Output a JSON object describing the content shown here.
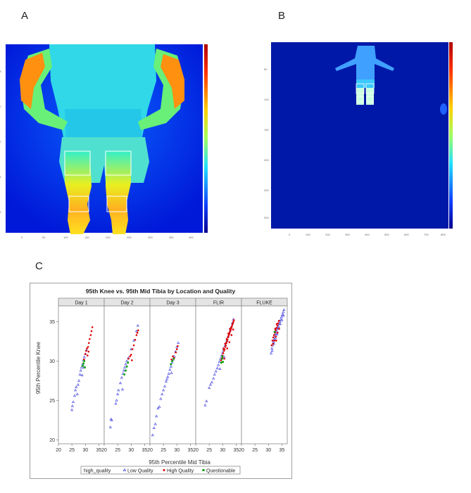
{
  "panels": {
    "a_label": "A",
    "b_label": "B",
    "c_label": "C"
  },
  "colors": {
    "thermal_low": "#0000c8",
    "thermal_high": "#cc0000",
    "low_quality": "#3a3ae0",
    "high_quality": "#e00000",
    "questionable": "#00a000"
  },
  "chart_data": {
    "type": "scatter",
    "title": "95th Knee vs. 95th Mid Tibia by Location and Quality",
    "xlabel": "95th Percentile Mid Tibia",
    "ylabel": "95th Percentile Knee",
    "xlim": [
      20,
      37
    ],
    "ylim": [
      19.5,
      37
    ],
    "x_ticks": [
      20,
      25,
      30,
      35
    ],
    "y_ticks": [
      20,
      25,
      30,
      35
    ],
    "grid": false,
    "legend_title": "high_quality",
    "legend_placement": "bottom",
    "facets": [
      {
        "name": "Day 1",
        "series": [
          {
            "name": "Low Quality",
            "points": [
              [
                25.0,
                23.8
              ],
              [
                25.2,
                24.3
              ],
              [
                25.5,
                24.8
              ],
              [
                26.0,
                25.6
              ],
              [
                26.3,
                26.3
              ],
              [
                26.6,
                26.7
              ],
              [
                27.0,
                25.8
              ],
              [
                27.3,
                27.0
              ],
              [
                27.6,
                27.5
              ],
              [
                28.0,
                28.3
              ],
              [
                28.3,
                28.8
              ],
              [
                28.6,
                29.2
              ],
              [
                29.0,
                29.6
              ],
              [
                29.3,
                30.1
              ],
              [
                29.6,
                30.5
              ],
              [
                30.0,
                30.9
              ],
              [
                30.4,
                31.4
              ],
              [
                28.8,
                28.2
              ],
              [
                29.5,
                29.2
              ]
            ]
          },
          {
            "name": "High Quality",
            "points": [
              [
                29.5,
                30.2
              ],
              [
                30.0,
                30.9
              ],
              [
                30.3,
                31.3
              ],
              [
                30.6,
                31.6
              ],
              [
                31.0,
                31.8
              ],
              [
                31.3,
                32.3
              ],
              [
                31.6,
                32.8
              ],
              [
                32.0,
                33.3
              ],
              [
                32.3,
                33.8
              ],
              [
                32.6,
                34.3
              ],
              [
                31.2,
                31.2
              ],
              [
                30.8,
                30.7
              ]
            ]
          },
          {
            "name": "Questionable",
            "points": [
              [
                29.0,
                29.4
              ],
              [
                29.3,
                29.7
              ],
              [
                29.6,
                30.0
              ],
              [
                29.8,
                29.2
              ]
            ]
          }
        ]
      },
      {
        "name": "Day 2",
        "series": [
          {
            "name": "Low Quality",
            "points": [
              [
                22.5,
                22.6
              ],
              [
                22.8,
                22.5
              ],
              [
                22.3,
                21.6
              ],
              [
                24.3,
                24.6
              ],
              [
                24.6,
                25.0
              ],
              [
                25.0,
                25.8
              ],
              [
                25.3,
                26.3
              ],
              [
                26.0,
                27.2
              ],
              [
                26.5,
                27.9
              ],
              [
                27.0,
                28.4
              ],
              [
                27.3,
                28.8
              ],
              [
                27.6,
                29.2
              ],
              [
                28.0,
                29.6
              ],
              [
                28.4,
                30.0
              ],
              [
                29.0,
                30.4
              ],
              [
                30.0,
                31.5
              ],
              [
                31.0,
                32.6
              ],
              [
                32.0,
                33.8
              ],
              [
                32.5,
                34.5
              ],
              [
                26.8,
                26.4
              ]
            ]
          },
          {
            "name": "High Quality",
            "points": [
              [
                29.0,
                30.3
              ],
              [
                29.6,
                30.6
              ],
              [
                30.0,
                30.8
              ],
              [
                30.5,
                31.5
              ],
              [
                31.0,
                32.0
              ],
              [
                31.5,
                32.7
              ],
              [
                32.0,
                33.3
              ],
              [
                32.3,
                33.6
              ],
              [
                32.6,
                33.9
              ],
              [
                30.3,
                30.1
              ]
            ]
          },
          {
            "name": "Questionable",
            "points": [
              [
                27.5,
                28.3
              ],
              [
                28.0,
                28.8
              ],
              [
                28.4,
                29.3
              ],
              [
                28.8,
                29.8
              ]
            ]
          }
        ]
      },
      {
        "name": "Day 3",
        "series": [
          {
            "name": "Low Quality",
            "points": [
              [
                21.0,
                20.6
              ],
              [
                21.5,
                21.5
              ],
              [
                22.0,
                22.0
              ],
              [
                22.4,
                23.0
              ],
              [
                23.0,
                24.0
              ],
              [
                23.5,
                24.2
              ],
              [
                24.0,
                25.2
              ],
              [
                24.5,
                25.8
              ],
              [
                25.0,
                26.3
              ],
              [
                25.5,
                26.8
              ],
              [
                26.0,
                27.4
              ],
              [
                26.3,
                27.7
              ],
              [
                26.6,
                28.0
              ],
              [
                27.0,
                28.4
              ],
              [
                27.4,
                28.9
              ],
              [
                27.8,
                29.3
              ],
              [
                28.2,
                29.8
              ],
              [
                28.6,
                30.2
              ],
              [
                29.0,
                30.6
              ],
              [
                29.5,
                31.2
              ],
              [
                30.0,
                31.8
              ],
              [
                30.5,
                32.3
              ],
              [
                28.0,
                28.5
              ]
            ]
          },
          {
            "name": "High Quality",
            "points": [
              [
                28.0,
                30.2
              ],
              [
                28.5,
                30.6
              ],
              [
                29.0,
                30.4
              ],
              [
                29.6,
                31.1
              ],
              [
                30.0,
                31.5
              ],
              [
                30.3,
                31.9
              ]
            ]
          },
          {
            "name": "Questionable",
            "points": [
              [
                27.8,
                29.6
              ],
              [
                28.3,
                30.0
              ],
              [
                28.8,
                30.3
              ]
            ]
          }
        ]
      },
      {
        "name": "FLIR",
        "series": [
          {
            "name": "Low Quality",
            "points": [
              [
                23.5,
                24.4
              ],
              [
                24.0,
                24.9
              ],
              [
                25.0,
                26.6
              ],
              [
                25.5,
                27.0
              ],
              [
                26.0,
                27.3
              ],
              [
                26.6,
                27.8
              ],
              [
                27.0,
                28.3
              ],
              [
                27.5,
                28.7
              ],
              [
                28.0,
                29.1
              ],
              [
                28.4,
                29.5
              ],
              [
                28.8,
                29.9
              ],
              [
                29.2,
                30.3
              ],
              [
                29.6,
                30.7
              ],
              [
                30.0,
                31.1
              ],
              [
                30.4,
                31.5
              ],
              [
                30.8,
                31.9
              ],
              [
                31.2,
                32.3
              ],
              [
                31.6,
                32.7
              ],
              [
                32.0,
                33.1
              ],
              [
                32.4,
                33.5
              ],
              [
                32.8,
                33.9
              ],
              [
                33.2,
                34.3
              ],
              [
                33.6,
                34.8
              ],
              [
                34.0,
                35.3
              ],
              [
                29.0,
                29.0
              ],
              [
                30.6,
                30.5
              ]
            ]
          },
          {
            "name": "High Quality",
            "points": [
              [
                29.4,
                30.1
              ],
              [
                29.8,
                30.4
              ],
              [
                30.0,
                30.7
              ],
              [
                30.2,
                31.0
              ],
              [
                30.5,
                31.3
              ],
              [
                30.7,
                31.5
              ],
              [
                31.0,
                31.8
              ],
              [
                31.2,
                32.0
              ],
              [
                31.4,
                32.3
              ],
              [
                31.6,
                32.5
              ],
              [
                31.8,
                32.7
              ],
              [
                32.0,
                33.0
              ],
              [
                32.2,
                33.2
              ],
              [
                32.4,
                33.4
              ],
              [
                32.6,
                33.6
              ],
              [
                32.8,
                33.8
              ],
              [
                33.0,
                34.0
              ],
              [
                33.2,
                34.2
              ],
              [
                33.4,
                34.4
              ],
              [
                33.6,
                34.6
              ],
              [
                33.8,
                34.8
              ],
              [
                34.0,
                35.0
              ],
              [
                34.2,
                35.2
              ],
              [
                30.3,
                31.6
              ],
              [
                30.9,
                32.2
              ],
              [
                31.5,
                32.8
              ],
              [
                32.1,
                33.5
              ],
              [
                32.7,
                34.1
              ],
              [
                33.3,
                33.3
              ],
              [
                31.7,
                31.6
              ],
              [
                30.6,
                30.3
              ],
              [
                32.5,
                32.4
              ],
              [
                33.9,
                34.0
              ]
            ]
          },
          {
            "name": "Questionable",
            "points": [
              [
                29.5,
                29.8
              ],
              [
                29.8,
                30.3
              ],
              [
                30.1,
                29.9
              ],
              [
                29.9,
                30.6
              ]
            ]
          }
        ]
      },
      {
        "name": "FLUKE",
        "series": [
          {
            "name": "Low Quality",
            "points": [
              [
                31.0,
                31.0
              ],
              [
                31.3,
                31.6
              ],
              [
                31.6,
                32.0
              ],
              [
                31.9,
                32.4
              ],
              [
                32.2,
                32.8
              ],
              [
                32.5,
                33.2
              ],
              [
                32.8,
                33.5
              ],
              [
                33.1,
                33.8
              ],
              [
                33.4,
                34.1
              ],
              [
                33.7,
                34.4
              ],
              [
                34.0,
                34.7
              ],
              [
                34.3,
                35.0
              ],
              [
                34.6,
                35.3
              ],
              [
                34.9,
                35.6
              ],
              [
                35.2,
                35.9
              ],
              [
                35.5,
                36.2
              ],
              [
                35.8,
                36.5
              ],
              [
                31.4,
                31.3
              ],
              [
                32.0,
                32.2
              ],
              [
                32.6,
                32.9
              ],
              [
                33.2,
                33.4
              ],
              [
                33.8,
                34.2
              ],
              [
                34.4,
                34.7
              ],
              [
                35.0,
                35.2
              ],
              [
                35.6,
                35.8
              ]
            ]
          },
          {
            "name": "High Quality",
            "points": [
              [
                31.5,
                32.6
              ],
              [
                31.8,
                33.0
              ],
              [
                32.1,
                33.3
              ],
              [
                32.4,
                33.6
              ],
              [
                32.7,
                33.9
              ],
              [
                33.0,
                34.2
              ],
              [
                33.3,
                34.5
              ],
              [
                33.6,
                34.8
              ],
              [
                33.9,
                35.1
              ],
              [
                31.7,
                32.2
              ],
              [
                32.2,
                32.6
              ],
              [
                32.8,
                33.1
              ],
              [
                33.4,
                33.6
              ],
              [
                34.0,
                34.1
              ],
              [
                32.5,
                34.1
              ],
              [
                33.1,
                34.7
              ],
              [
                31.2,
                32.0
              ],
              [
                32.9,
                32.6
              ]
            ]
          },
          {
            "name": "Questionable",
            "points": [
              [
                32.3,
                33.7
              ]
            ]
          }
        ]
      }
    ]
  }
}
